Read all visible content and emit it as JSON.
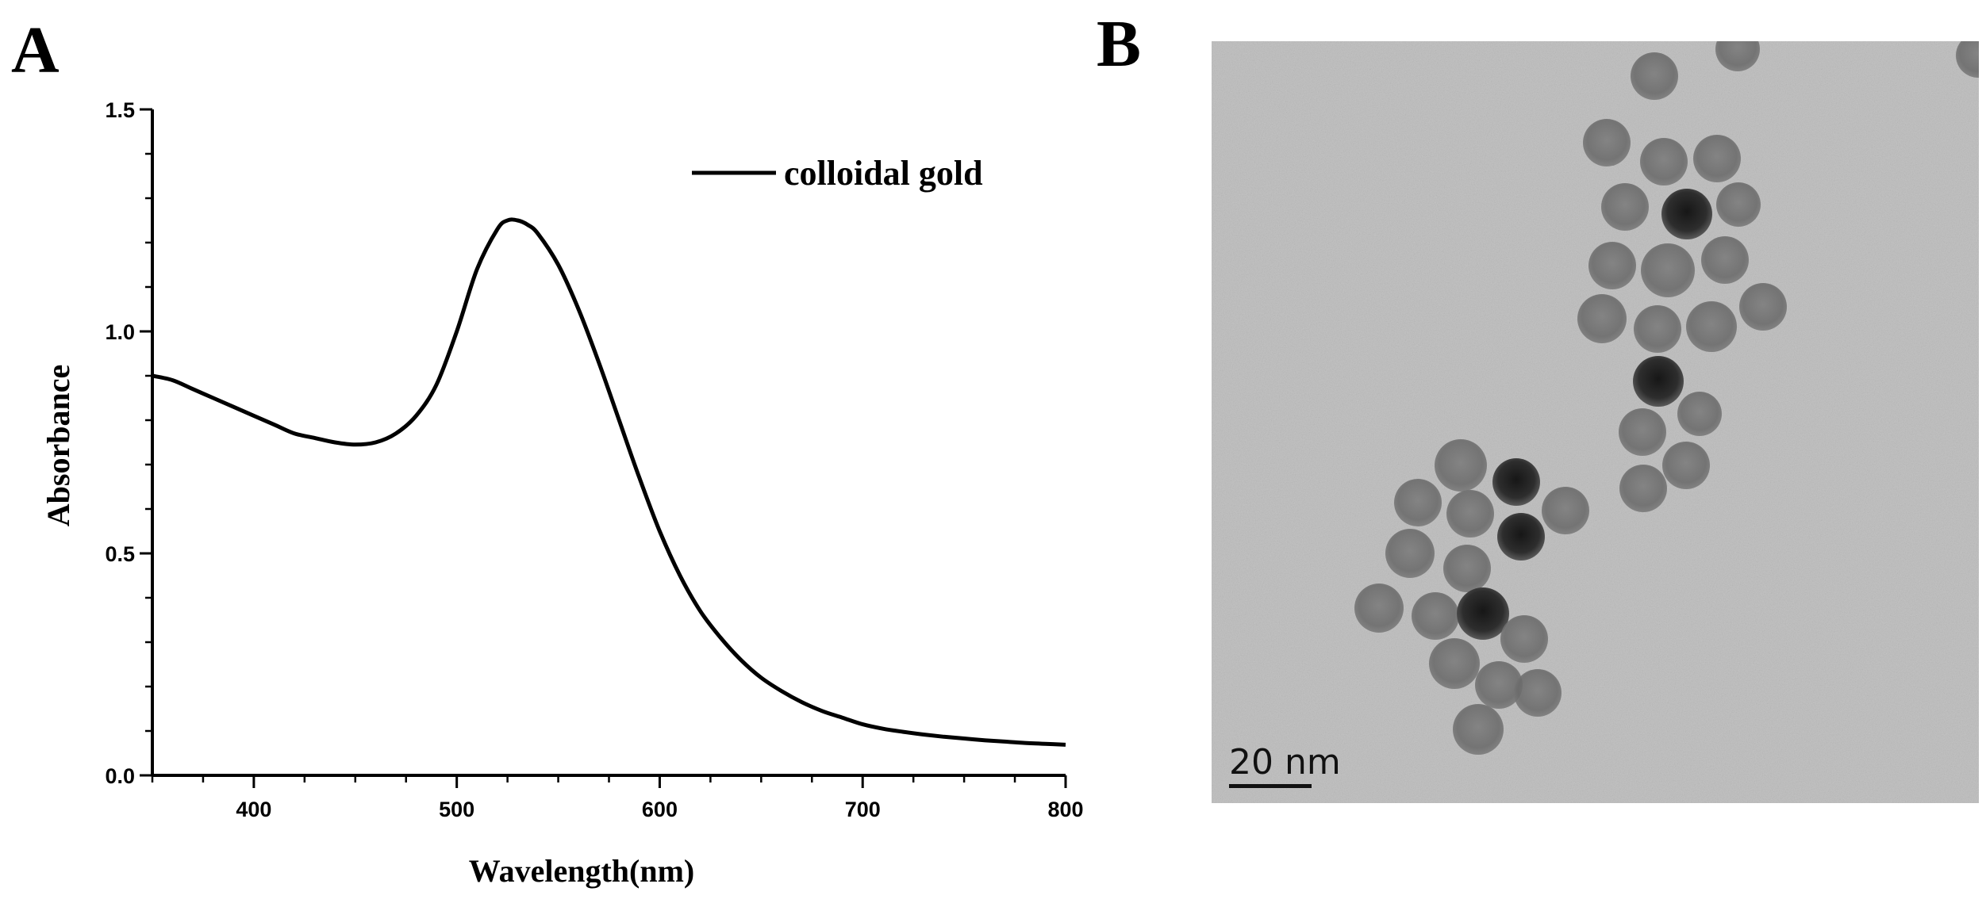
{
  "panels": {
    "a_label": "A",
    "b_label": "B"
  },
  "chart_data": {
    "type": "line",
    "title": "",
    "xlabel": "Wavelength(nm)",
    "ylabel": "Absorbance",
    "xlim": [
      350,
      800
    ],
    "ylim": [
      0.0,
      1.5
    ],
    "x_ticks": [
      400,
      500,
      600,
      700,
      800
    ],
    "x_tick_labels": [
      "400",
      "500",
      "600",
      "700",
      "800"
    ],
    "y_ticks": [
      0.0,
      0.5,
      1.0,
      1.5
    ],
    "y_tick_labels": [
      "0.0",
      "0.5",
      "1.0",
      "1.5"
    ],
    "grid": false,
    "legend_position": "top-right",
    "series": [
      {
        "name": "colloidal gold",
        "color": "#000000",
        "x": [
          350,
          360,
          370,
          380,
          390,
          400,
          410,
          420,
          430,
          440,
          450,
          460,
          470,
          480,
          490,
          500,
          510,
          520,
          525,
          530,
          535,
          540,
          550,
          560,
          570,
          580,
          590,
          600,
          610,
          620,
          630,
          640,
          650,
          660,
          670,
          680,
          690,
          700,
          710,
          720,
          730,
          740,
          750,
          760,
          770,
          780,
          790,
          800
        ],
        "y": [
          0.9,
          0.89,
          0.87,
          0.85,
          0.83,
          0.81,
          0.79,
          0.77,
          0.76,
          0.75,
          0.745,
          0.75,
          0.77,
          0.81,
          0.88,
          1.0,
          1.14,
          1.23,
          1.25,
          1.25,
          1.24,
          1.22,
          1.15,
          1.05,
          0.93,
          0.8,
          0.67,
          0.55,
          0.45,
          0.37,
          0.31,
          0.26,
          0.22,
          0.19,
          0.165,
          0.145,
          0.13,
          0.115,
          0.105,
          0.098,
          0.092,
          0.087,
          0.083,
          0.079,
          0.076,
          0.073,
          0.071,
          0.069
        ]
      }
    ]
  },
  "tem_image": {
    "scale_bar_label": "20 nm",
    "background_color": "#c4c4c4",
    "particle_color": "#6c6c6c",
    "dark_particle_color": "#1e1e1e"
  }
}
